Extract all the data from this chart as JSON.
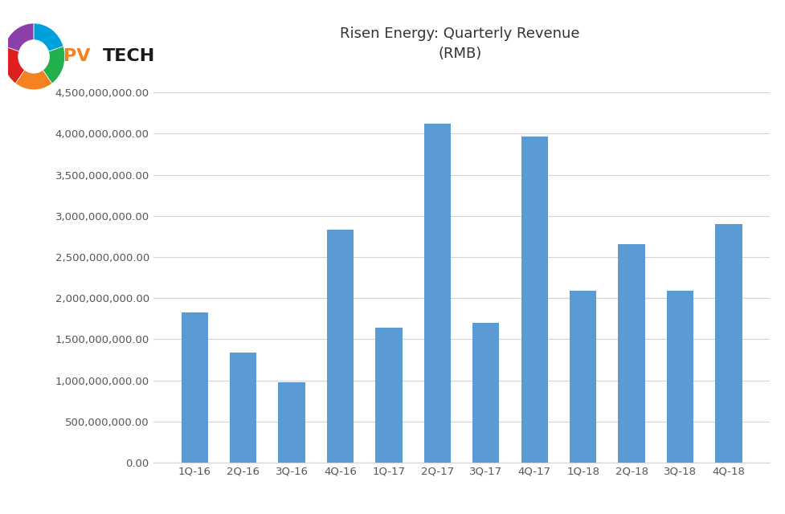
{
  "categories": [
    "1Q-16",
    "2Q-16",
    "3Q-16",
    "4Q-16",
    "1Q-17",
    "2Q-17",
    "3Q-17",
    "4Q-17",
    "1Q-18",
    "2Q-18",
    "3Q-18",
    "4Q-18"
  ],
  "values": [
    1830000000,
    1340000000,
    980000000,
    2830000000,
    1640000000,
    4120000000,
    1700000000,
    3960000000,
    2090000000,
    2660000000,
    2090000000,
    2900000000
  ],
  "bar_color": "#5B9BD5",
  "title_line1": "Risen Energy: Quarterly Revenue",
  "title_line2": "(RMB)",
  "ylim_max": 4500000000,
  "ytick_step": 500000000,
  "background_color": "#FFFFFF",
  "grid_color": "#D3D3D3",
  "title_fontsize": 13,
  "tick_fontsize": 9.5,
  "bar_width": 0.55
}
